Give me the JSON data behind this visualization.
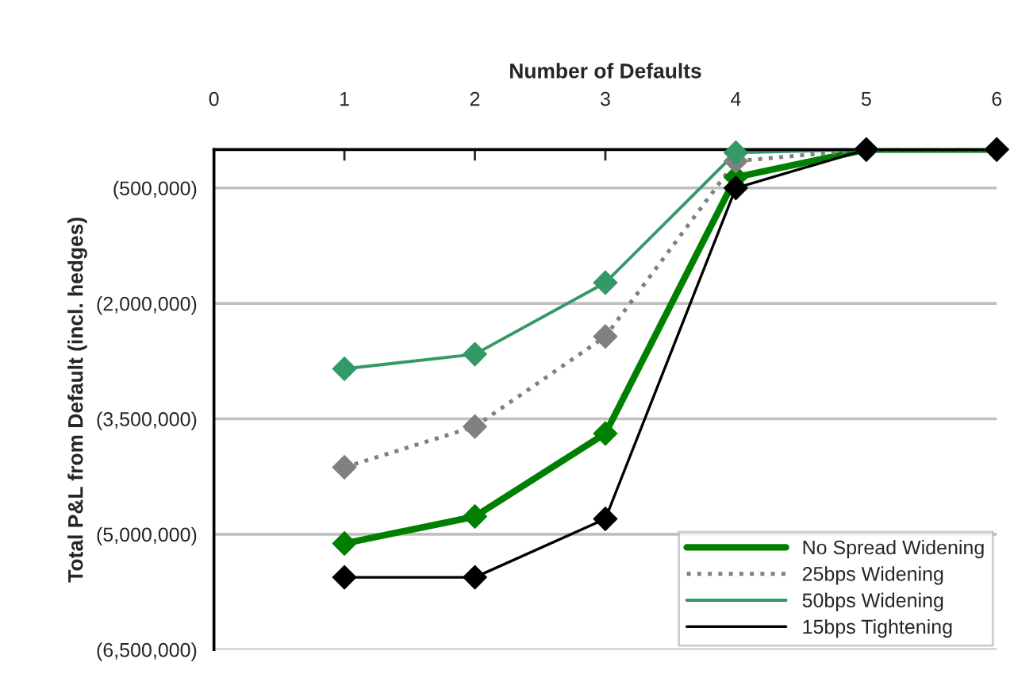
{
  "chart_data": {
    "type": "line",
    "xlabel": "Number of Defaults",
    "ylabel": "Total P&L from Default (incl. hedges)",
    "x": [
      1,
      2,
      3,
      4,
      5,
      6
    ],
    "series": [
      {
        "name": "No Spread Widening",
        "color": "#008000",
        "line_style": "solid",
        "values": [
          -5120000,
          -4770000,
          -3690000,
          -360000,
          0,
          0
        ]
      },
      {
        "name": "25bps Widening",
        "color": "#808080",
        "line_style": "dotted",
        "values": [
          -4130000,
          -3600000,
          -2430000,
          -150000,
          0,
          0
        ]
      },
      {
        "name": "50bps Widening",
        "color": "#339966",
        "line_style": "solid",
        "values": [
          -2850000,
          -2660000,
          -1730000,
          -40000,
          0,
          0
        ]
      },
      {
        "name": "15bps Tightening",
        "color": "#000000",
        "line_style": "solid",
        "values": [
          -5560000,
          -5560000,
          -4800000,
          -500000,
          0,
          0
        ]
      }
    ],
    "xlim": [
      0,
      6
    ],
    "xticks": [
      0,
      1,
      2,
      3,
      4,
      5,
      6
    ],
    "ylim": [
      -6500000,
      0
    ],
    "yticks": [
      {
        "value": -500000,
        "label": "(500,000)"
      },
      {
        "value": -2000000,
        "label": "(2,000,000)"
      },
      {
        "value": -3500000,
        "label": "(3,500,000)"
      },
      {
        "value": -5000000,
        "label": "(5,000,000)"
      },
      {
        "value": -6500000,
        "label": "(6,500,000)"
      }
    ],
    "grid": "y",
    "legend": "bottom right",
    "marker": "diamond"
  }
}
